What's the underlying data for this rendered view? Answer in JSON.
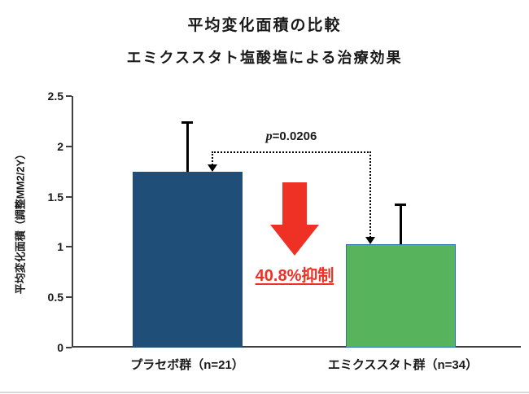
{
  "chart_data": {
    "type": "bar",
    "title": "平均変化面積の比較",
    "subtitle": "エミクススタト塩酸塩による治療効果",
    "ylabel": "平均変化面積（調整MM2/2Y）",
    "xlabel": "",
    "ylim": [
      0,
      2.5
    ],
    "ytick_labels": [
      "2.5",
      "2",
      "1.5",
      "1",
      "0.5",
      "0"
    ],
    "grid": false,
    "legend": false,
    "categories": [
      "プラセボ群（n=21）",
      "エミクススタト群（n=34）"
    ],
    "series": [
      {
        "name": "平均変化面積（調整MM2/2Y）",
        "values": [
          1.75,
          1.03
        ],
        "error_upper": [
          0.5,
          0.4
        ],
        "bar_colors": [
          "#1F4E79",
          "#58B45C"
        ],
        "bar_border_colors": [
          "#1F4E79",
          "#2E75B6"
        ]
      }
    ],
    "annotations": {
      "p_prefix": "p",
      "p_value": "=0.0206",
      "reduction_label": "40.8%抑制",
      "arrow_color": "#EE3124",
      "reduction_color": "#EE3124",
      "bracket_color": "#000000",
      "error_bar_color": "#000000"
    }
  }
}
